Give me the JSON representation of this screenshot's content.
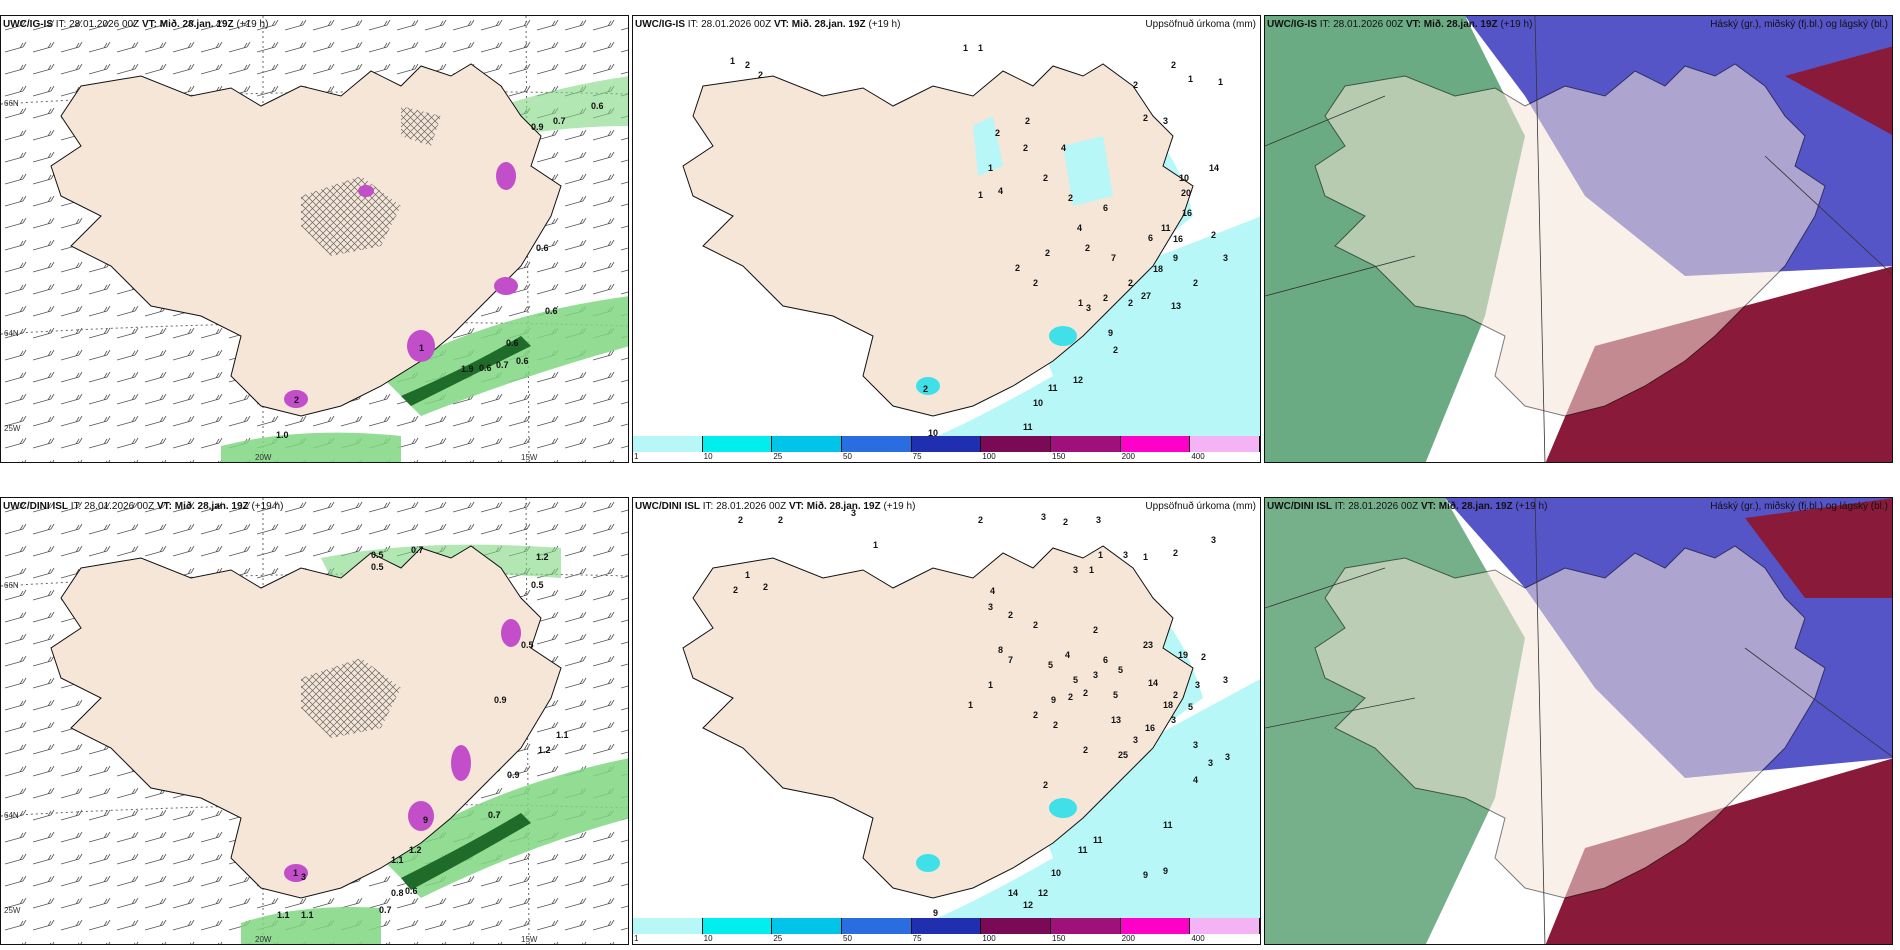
{
  "panels": {
    "p1": {
      "model": "UWC/IG-IS",
      "it_label": "IT:",
      "it_value": "28.01.2026 00Z",
      "vt_label": "VT:",
      "vt_value": "Mið. 28.jan. 19Z",
      "lead": "(+19 h)"
    },
    "p2": {
      "model": "UWC/IG-IS",
      "it_label": "IT:",
      "it_value": "28.01.2026 00Z",
      "vt_label": "VT:",
      "vt_value": "Mið. 28.jan. 19Z",
      "lead": "(+19 h)",
      "right_title": "Uppsöfnuð úrkoma (mm)"
    },
    "p3": {
      "model": "UWC/IG-IS",
      "it_label": "IT:",
      "it_value": "28.01.2026 00Z",
      "vt_label": "VT:",
      "vt_value": "Mið. 28.jan. 19Z",
      "lead": "(+19 h)",
      "right_title": "Háský (gr.), miðský (fj.bl.) og lágský (bl.)"
    },
    "p4": {
      "model": "UWC/DINI ISL",
      "it_label": "IT:",
      "it_value": "28.01.2026 00Z",
      "vt_label": "VT:",
      "vt_value": "Mið. 28.jan. 19Z",
      "lead": "(+19 h)"
    },
    "p5": {
      "model": "UWC/DINI ISL",
      "it_label": "IT:",
      "it_value": "28.01.2026 00Z",
      "vt_label": "VT:",
      "vt_value": "Mið. 28.jan. 19Z",
      "lead": "(+19 h)",
      "right_title": "Uppsöfnuð úrkoma (mm)"
    },
    "p6": {
      "model": "UWC/DINI ISL",
      "it_label": "IT:",
      "it_value": "28.01.2026 00Z",
      "vt_label": "VT:",
      "vt_value": "Mið. 28.jan. 19Z",
      "lead": "(+19 h)",
      "right_title": "Háský (gr.), miðský (fj.bl.) og lágský (bl.)"
    }
  },
  "grid_labels": {
    "lat_66": "66N",
    "lat_64": "64N",
    "lon_25": "25W",
    "lon_20": "20W",
    "lon_15": "15W"
  },
  "colorbar": {
    "colors": [
      "#b7f7f7",
      "#00eeee",
      "#00c4e8",
      "#2a6de0",
      "#1f2fb0",
      "#7a0a55",
      "#a0107a",
      "#ff00c8",
      "#f4b3f4"
    ],
    "ticks": [
      "1",
      "10",
      "25",
      "50",
      "75",
      "100",
      "150",
      "200",
      "400"
    ]
  },
  "colors": {
    "land": "#f5e6d8",
    "coast": "#111111",
    "precip_light": "#b7f7f7",
    "precip_med": "#40e0e8",
    "wind_green": "#7fd680",
    "wind_dark": "#1e6b2a",
    "magenta": "#c24fc9",
    "high_cloud": "#3a8f5a",
    "mid_cloud": "#5555c8",
    "low_cloud": "#8a1a3a"
  },
  "values": {
    "p1": [
      "0.6",
      "0.7",
      "0.6",
      "0.9",
      "0.6",
      "0.6",
      "1.9",
      "0.6",
      "0.7",
      "0.6",
      "1.0",
      "1",
      "2"
    ],
    "p2": [
      "1",
      "2",
      "2",
      "1",
      "1",
      "2",
      "2",
      "1",
      "1",
      "2",
      "3",
      "2",
      "2",
      "2",
      "1",
      "1",
      "4",
      "4",
      "14",
      "10",
      "20",
      "16",
      "11",
      "16",
      "6",
      "9",
      "18",
      "6",
      "2",
      "2",
      "4",
      "2",
      "2",
      "2",
      "2",
      "3",
      "2",
      "7",
      "2",
      "27",
      "2",
      "3",
      "2",
      "13",
      "9",
      "11",
      "12",
      "10",
      "11",
      "10",
      "2",
      "2",
      "1",
      "2"
    ],
    "p4": [
      "0.5",
      "0.7",
      "0.5",
      "1.2",
      "0.5",
      "1.1",
      "0.9",
      "0.5",
      "1.2",
      "1.2",
      "1.1",
      "0.9",
      "0.7",
      "1.1",
      "0.8",
      "0.6",
      "0.7",
      "1.1",
      "1",
      "9",
      "3"
    ],
    "p5": [
      "2",
      "2",
      "3",
      "2",
      "3",
      "2",
      "3",
      "1",
      "1",
      "2",
      "2",
      "3",
      "1",
      "2",
      "3",
      "3",
      "1",
      "1",
      "4",
      "3",
      "2",
      "2",
      "2",
      "6",
      "5",
      "23",
      "19",
      "2",
      "3",
      "3",
      "8",
      "7",
      "5",
      "4",
      "5",
      "3",
      "9",
      "2",
      "2",
      "5",
      "1",
      "1",
      "2",
      "25",
      "3",
      "3",
      "2",
      "13",
      "16",
      "18",
      "14",
      "2",
      "3",
      "2",
      "5",
      "3",
      "4",
      "3",
      "11",
      "11",
      "11",
      "12",
      "14",
      "12",
      "10",
      "9",
      "9",
      "9",
      "2"
    ]
  }
}
